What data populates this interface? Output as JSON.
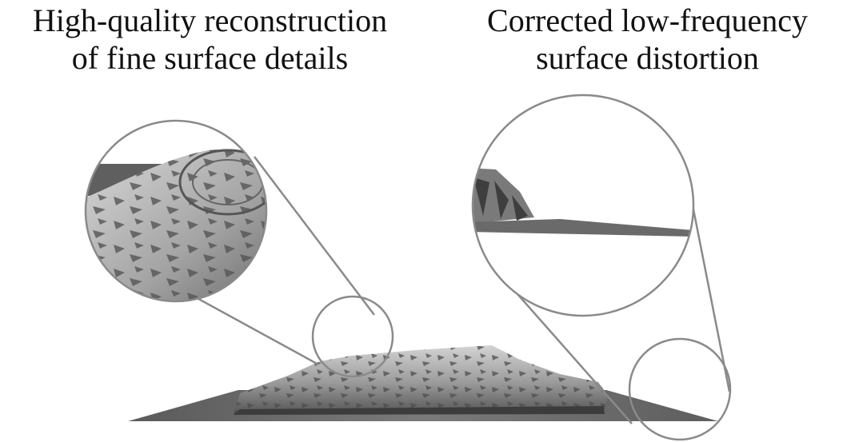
{
  "captions": {
    "left": {
      "line1": "High-quality reconstruction",
      "line2": "of fine surface details"
    },
    "right": {
      "line1": "Corrected low-frequency",
      "line2": "surface distortion"
    }
  },
  "colors": {
    "outline": "#8a8a8a",
    "plane": "#6b6b6b",
    "object_light": "#b8b8b8",
    "object_dark": "#4a4a4a",
    "text": "#111111"
  }
}
